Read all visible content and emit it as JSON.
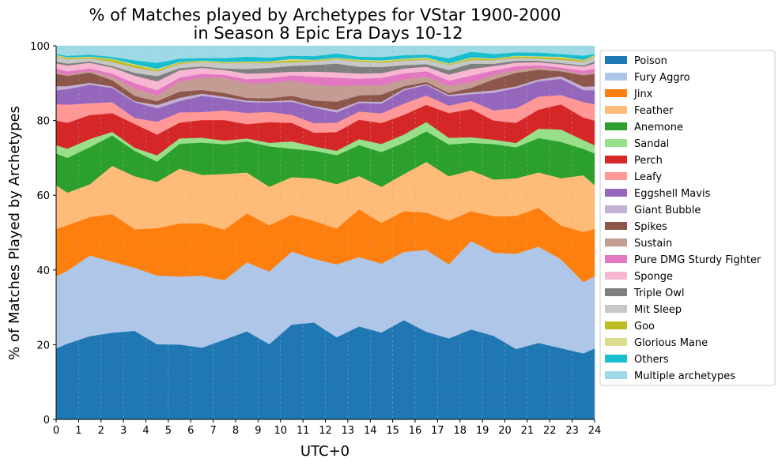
{
  "chart_data": {
    "type": "area",
    "stacked": true,
    "title": [
      "% of Matches played by Archetypes for VStar 1900-2000",
      "in Season 8 Epic Era Days 10-12"
    ],
    "xlabel": "UTC+0",
    "ylabel": "% of Matches Played by Archetypes",
    "xlim": [
      0,
      24
    ],
    "ylim": [
      0,
      100
    ],
    "x_ticks": [
      0,
      1,
      2,
      3,
      4,
      5,
      6,
      7,
      8,
      9,
      10,
      11,
      12,
      13,
      14,
      15,
      16,
      17,
      18,
      19,
      20,
      21,
      22,
      23,
      24
    ],
    "y_ticks": [
      0,
      20,
      40,
      60,
      80,
      100
    ],
    "grid": "vertical dashed",
    "legend_position": "right",
    "x": [
      0,
      0.5,
      1.5,
      2.5,
      3.5,
      4.5,
      5.5,
      6.5,
      7.5,
      8.5,
      9.5,
      10.5,
      11.5,
      12.5,
      13.5,
      14.5,
      15.5,
      16.5,
      17.5,
      18.5,
      19.5,
      20.5,
      21.5,
      22.5,
      23.5,
      24
    ],
    "series": [
      {
        "name": "Poison",
        "color": "#1f77b4",
        "values": [
          19.0,
          20.5,
          22.5,
          23.7,
          23.7,
          20.3,
          20.5,
          19.5,
          21.5,
          23.5,
          20.5,
          26.0,
          26.3,
          22.7,
          24.9,
          23.3,
          26.3,
          23.5,
          21.7,
          24.2,
          22.7,
          19.3,
          20.5,
          19.0,
          17.5,
          19.0
        ]
      },
      {
        "name": "Fury Aggro",
        "color": "#aec7e8",
        "values": [
          19.3,
          19.7,
          21.8,
          19.4,
          16.9,
          18.6,
          18.6,
          19.6,
          16.0,
          18.4,
          19.8,
          20.0,
          17.3,
          20.1,
          18.6,
          18.5,
          18.1,
          21.9,
          19.8,
          23.8,
          22.6,
          26.1,
          25.8,
          23.7,
          18.9,
          19.3
        ]
      },
      {
        "name": "Jinx",
        "color": "#ff7f0e",
        "values": [
          12.7,
          12.3,
          10.4,
          13.0,
          10.3,
          12.8,
          14.5,
          14.2,
          13.6,
          13.1,
          12.6,
          10.1,
          10.3,
          9.9,
          12.8,
          10.9,
          10.8,
          10.0,
          11.7,
          8.0,
          9.9,
          10.4,
          10.4,
          9.0,
          13.3,
          12.7
        ]
      },
      {
        "name": "Feather",
        "color": "#ffbb78",
        "values": [
          11.7,
          8.8,
          8.9,
          13.2,
          14.2,
          12.5,
          15.0,
          13.2,
          15.0,
          10.9,
          10.5,
          10.3,
          11.6,
          12.3,
          8.9,
          9.7,
          9.8,
          13.6,
          11.9,
          11.0,
          10.0,
          10.3,
          9.5,
          12.6,
          15.0,
          11.7
        ]
      },
      {
        "name": "Anemone",
        "color": "#2ca02c",
        "values": [
          8.5,
          9.4,
          10.0,
          8.3,
          6.8,
          5.5,
          6.8,
          8.8,
          8.0,
          8.3,
          11.0,
          7.8,
          7.5,
          8.0,
          8.3,
          9.3,
          8.3,
          8.2,
          8.5,
          7.4,
          9.6,
          8.5,
          9.2,
          9.7,
          7.0,
          8.5
        ]
      },
      {
        "name": "Sandal",
        "color": "#98df8a",
        "values": [
          2.2,
          2.5,
          2.2,
          1.0,
          0.8,
          1.7,
          1.5,
          1.3,
          1.0,
          0.8,
          1.0,
          2.0,
          1.2,
          1.2,
          1.6,
          2.2,
          2.2,
          2.5,
          1.8,
          1.5,
          1.2,
          1.2,
          2.5,
          3.3,
          2.3,
          2.2
        ]
      },
      {
        "name": "Perch",
        "color": "#d62728",
        "values": [
          6.6,
          7.0,
          6.5,
          5.1,
          6.4,
          5.6,
          4.3,
          4.8,
          5.5,
          3.8,
          5.6,
          5.1,
          3.7,
          5.2,
          5.2,
          5.6,
          5.2,
          4.6,
          6.6,
          7.6,
          5.2,
          5.5,
          5.1,
          6.7,
          6.0,
          6.6
        ]
      },
      {
        "name": "Leafy",
        "color": "#ff9896",
        "values": [
          4.4,
          4.9,
          3.2,
          3.0,
          1.6,
          3.5,
          2.8,
          2.2,
          2.6,
          3.0,
          2.8,
          2.2,
          2.6,
          2.6,
          2.2,
          2.6,
          3.0,
          2.5,
          2.0,
          2.2,
          2.8,
          4.0,
          3.5,
          2.5,
          4.1,
          4.4
        ]
      },
      {
        "name": "Eggshell Mavis",
        "color": "#9467bd",
        "values": [
          3.7,
          4.2,
          5.0,
          3.9,
          4.2,
          3.6,
          3.1,
          4.4,
          3.2,
          2.9,
          2.6,
          3.6,
          4.2,
          2.8,
          2.3,
          2.6,
          3.5,
          2.8,
          2.5,
          1.8,
          4.8,
          5.5,
          4.1,
          4.3,
          3.2,
          3.7
        ]
      },
      {
        "name": "Giant Bubble",
        "color": "#c5b0d5",
        "values": [
          1.1,
          0.8,
          0.5,
          0.4,
          0.3,
          0.9,
          0.9,
          0.6,
          0.5,
          0.4,
          0.3,
          0.4,
          0.4,
          0.7,
          0.4,
          0.5,
          0.4,
          0.3,
          0.4,
          0.5,
          0.6,
          0.5,
          0.5,
          0.7,
          0.9,
          1.1
        ]
      },
      {
        "name": "Spikes",
        "color": "#8c564b",
        "values": [
          3.3,
          2.8,
          2.8,
          1.7,
          1.4,
          1.0,
          1.7,
          1.0,
          1.0,
          0.7,
          0.8,
          1.2,
          1.5,
          2.3,
          1.6,
          1.9,
          0.7,
          0.5,
          0.5,
          1.2,
          3.0,
          3.7,
          2.6,
          1.3,
          3.0,
          3.3
        ]
      },
      {
        "name": "Sustain",
        "color": "#c49c94",
        "values": [
          0.4,
          0.4,
          0.5,
          1.0,
          2.0,
          1.6,
          2.7,
          3.4,
          4.1,
          4.0,
          4.1,
          4.2,
          4.4,
          4.3,
          2.8,
          2.5,
          1.8,
          1.5,
          1.9,
          1.5,
          1.2,
          0.8,
          0.6,
          0.5,
          0.3,
          0.4
        ]
      },
      {
        "name": "Pure DMG Sturdy Fighter",
        "color": "#e377c2",
        "values": [
          1.0,
          0.8,
          0.6,
          0.8,
          1.4,
          1.4,
          1.1,
          1.0,
          0.8,
          1.0,
          1.4,
          1.4,
          2.1,
          2.3,
          1.7,
          2.0,
          1.6,
          1.4,
          1.4,
          1.8,
          1.2,
          1.0,
          0.6,
          0.5,
          0.9,
          1.0
        ]
      },
      {
        "name": "Sponge",
        "color": "#f7b6d2",
        "values": [
          1.4,
          1.6,
          1.5,
          1.7,
          2.0,
          2.4,
          2.0,
          1.6,
          1.3,
          1.5,
          1.4,
          1.0,
          1.4,
          1.5,
          1.4,
          1.3,
          1.3,
          1.2,
          1.6,
          1.8,
          1.2,
          1.0,
          0.8,
          0.9,
          1.1,
          1.4
        ]
      },
      {
        "name": "Triple Owl",
        "color": "#7f7f7f",
        "values": [
          0.5,
          0.5,
          0.4,
          0.4,
          0.8,
          1.4,
          0.6,
          0.4,
          0.4,
          1.2,
          1.4,
          1.6,
          1.8,
          2.4,
          1.8,
          1.6,
          0.9,
          0.7,
          1.2,
          1.4,
          0.6,
          0.5,
          0.4,
          0.3,
          0.3,
          0.5
        ]
      },
      {
        "name": "Mit Sleep",
        "color": "#c7c7c7",
        "values": [
          1.3,
          1.2,
          0.8,
          1.1,
          1.4,
          1.3,
          1.2,
          1.2,
          1.4,
          1.6,
          1.3,
          1.0,
          1.0,
          1.2,
          1.4,
          1.2,
          1.2,
          1.2,
          1.4,
          1.0,
          1.0,
          0.8,
          0.6,
          0.9,
          1.0,
          1.3
        ]
      },
      {
        "name": "Goo",
        "color": "#bcbd22",
        "values": [
          0.2,
          0.3,
          0.3,
          0.7,
          0.6,
          0.4,
          0.3,
          0.2,
          0.2,
          0.2,
          0.3,
          0.5,
          0.2,
          0.2,
          0.3,
          0.3,
          0.3,
          0.3,
          0.2,
          0.4,
          0.3,
          0.4,
          0.4,
          0.5,
          0.3,
          0.2
        ]
      },
      {
        "name": "Glorious Mane",
        "color": "#dbdb8d",
        "values": [
          0.2,
          0.2,
          0.2,
          0.2,
          0.3,
          0.3,
          0.2,
          0.2,
          0.2,
          0.2,
          0.2,
          0.4,
          0.2,
          0.2,
          0.2,
          0.3,
          0.2,
          0.3,
          0.2,
          0.3,
          0.2,
          0.2,
          0.2,
          0.3,
          0.2,
          0.2
        ]
      },
      {
        "name": "Others",
        "color": "#17becf",
        "values": [
          0.3,
          0.4,
          0.5,
          0.5,
          1.0,
          1.6,
          0.9,
          0.7,
          1.0,
          1.3,
          1.0,
          0.9,
          1.0,
          1.2,
          0.8,
          0.9,
          0.9,
          0.8,
          1.4,
          1.5,
          1.2,
          0.9,
          1.0,
          0.7,
          1.1,
          0.3
        ]
      },
      {
        "name": "Multiple archetypes",
        "color": "#9edae5",
        "values": [
          2.2,
          2.7,
          2.4,
          3.0,
          3.9,
          4.6,
          3.5,
          3.3,
          3.3,
          2.9,
          3.2,
          2.7,
          2.8,
          2.1,
          2.9,
          3.0,
          2.5,
          2.3,
          3.3,
          1.6,
          2.2,
          1.8,
          1.8,
          2.2,
          2.6,
          2.2
        ]
      }
    ]
  }
}
